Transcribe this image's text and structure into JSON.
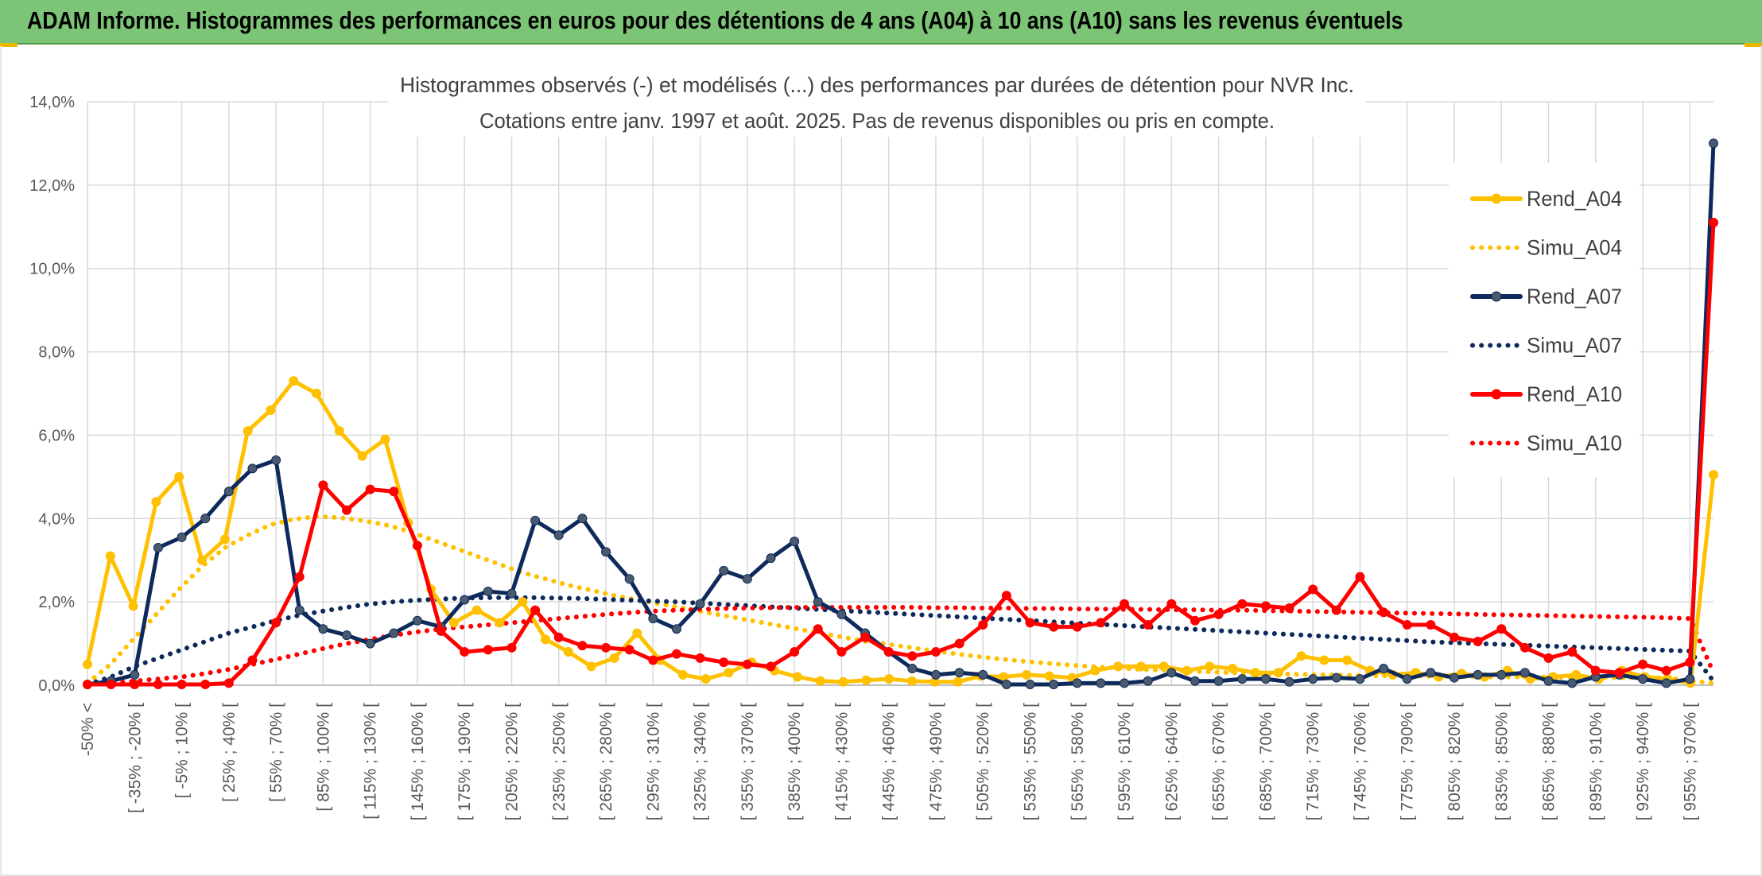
{
  "header": {
    "title": "ADAM Informe. Histogrammes des performances en euros pour des détentions de 4 ans (A04) à 10 ans (A10) sans les revenus éventuels"
  },
  "colors": {
    "header_bg": "#7cc576",
    "A04": "#ffc000",
    "A07": "#0e2a5c",
    "A07_marker": "#4a5a6e",
    "A10": "#ff0000",
    "grid": "#d9d9d9",
    "axis_text": "#595959"
  },
  "chart_data": {
    "type": "line",
    "title_lines": [
      "Histogrammes observés (-) et modélisés (...) des performances par durées de détention pour NVR Inc.",
      "Cotations entre janv. 1997 et août. 2025. Pas de revenus disponibles ou pris en compte."
    ],
    "ylim": [
      0,
      14
    ],
    "y_ticks": [
      "0,0%",
      "2,0%",
      "4,0%",
      "6,0%",
      "8,0%",
      "10,0%",
      "12,0%",
      "14,0%"
    ],
    "grid": true,
    "legend_position": "right",
    "x_tick_labels": [
      "-50% <",
      "[ -35% ; -20% [",
      "[ -5% ; 10% [",
      "[ 25% ; 40% [",
      "[ 55% ; 70% [",
      "[ 85% ; 100% [",
      "[ 115% ; 130% [",
      "[ 145% ; 160% [",
      "[ 175% ; 190% [",
      "[ 205% ; 220% [",
      "[ 235% ; 250% [",
      "[ 265% ; 280% [",
      "[ 295% ; 310% [",
      "[ 325% ; 340% [",
      "[ 355% ; 370% [",
      "[ 385% ; 400% [",
      "[ 415% ; 430% [",
      "[ 445% ; 460% [",
      "[ 475% ; 490% [",
      "[ 505% ; 520% [",
      "[ 535% ; 550% [",
      "[ 565% ; 580% [",
      "[ 595% ; 610% [",
      "[ 625% ; 640% [",
      "[ 655% ; 670% [",
      "[ 685% ; 700% [",
      "[ 715% ; 730% [",
      "[ 745% ; 760% [",
      "[ 775% ; 790% [",
      "[ 805% ; 820% [",
      "[ 835% ; 850% [",
      "[ 865% ; 880% [",
      "[ 895% ; 910% [",
      "[ 925% ; 940% [",
      "[ 955% ; 970% ["
    ],
    "series": [
      {
        "name": "Rend_A04",
        "style": "solid",
        "color": "#ffc000",
        "marker": true,
        "values": [
          0.5,
          3.1,
          1.9,
          4.4,
          5.0,
          3.0,
          3.5,
          6.1,
          6.6,
          7.3,
          7.0,
          6.1,
          5.5,
          5.9,
          3.9,
          2.3,
          1.5,
          1.8,
          1.5,
          2.0,
          1.1,
          0.8,
          0.45,
          0.65,
          1.25,
          0.6,
          0.25,
          0.15,
          0.3,
          0.55,
          0.35,
          0.2,
          0.1,
          0.08,
          0.12,
          0.15,
          0.1,
          0.08,
          0.08,
          0.22,
          0.2,
          0.25,
          0.22,
          0.18,
          0.35,
          0.45,
          0.45,
          0.45,
          0.35,
          0.45,
          0.4,
          0.3,
          0.3,
          0.7,
          0.6,
          0.6,
          0.35,
          0.25,
          0.3,
          0.2,
          0.28,
          0.2,
          0.35,
          0.15,
          0.2,
          0.25,
          0.15,
          0.35,
          0.2,
          0.15,
          0.05,
          5.05
        ]
      },
      {
        "name": "Simu_A04",
        "style": "dotted",
        "color": "#ffc000",
        "marker": false,
        "values": [
          0.05,
          0.5,
          1.1,
          1.7,
          2.3,
          2.85,
          3.3,
          3.6,
          3.85,
          3.98,
          4.05,
          4.02,
          3.95,
          3.85,
          3.7,
          3.5,
          3.3,
          3.1,
          2.9,
          2.7,
          2.55,
          2.4,
          2.28,
          2.15,
          2.05,
          1.95,
          1.85,
          1.75,
          1.65,
          1.55,
          1.45,
          1.35,
          1.25,
          1.15,
          1.05,
          0.98,
          0.9,
          0.82,
          0.75,
          0.68,
          0.62,
          0.57,
          0.52,
          0.48,
          0.44,
          0.41,
          0.38,
          0.36,
          0.34,
          0.32,
          0.3,
          0.28,
          0.27,
          0.26,
          0.25,
          0.24,
          0.23,
          0.22,
          0.22,
          0.21,
          0.21,
          0.2,
          0.2,
          0.2,
          0.19,
          0.19,
          0.19,
          0.18,
          0.18,
          0.18,
          0.1,
          0.05
        ]
      },
      {
        "name": "Rend_A07",
        "style": "solid",
        "color": "#0e2a5c",
        "marker": true,
        "values": [
          0.02,
          0.1,
          0.25,
          3.3,
          3.55,
          4.0,
          4.65,
          5.2,
          5.4,
          1.8,
          1.35,
          1.2,
          1.0,
          1.25,
          1.55,
          1.4,
          2.05,
          2.25,
          2.2,
          3.95,
          3.6,
          4.0,
          3.2,
          2.55,
          1.6,
          1.35,
          1.95,
          2.75,
          2.55,
          3.05,
          3.45,
          2.0,
          1.7,
          1.25,
          0.8,
          0.4,
          0.25,
          0.3,
          0.25,
          0.02,
          0.02,
          0.02,
          0.05,
          0.05,
          0.05,
          0.1,
          0.3,
          0.1,
          0.1,
          0.15,
          0.15,
          0.08,
          0.15,
          0.18,
          0.15,
          0.4,
          0.15,
          0.3,
          0.18,
          0.25,
          0.25,
          0.3,
          0.1,
          0.05,
          0.2,
          0.25,
          0.15,
          0.05,
          0.15,
          13.0
        ]
      },
      {
        "name": "Simu_A07",
        "style": "dotted",
        "color": "#0e2a5c",
        "marker": false,
        "values": [
          0.02,
          0.2,
          0.45,
          0.65,
          0.85,
          1.05,
          1.25,
          1.4,
          1.55,
          1.68,
          1.78,
          1.87,
          1.95,
          2.0,
          2.04,
          2.07,
          2.09,
          2.1,
          2.1,
          2.1,
          2.09,
          2.08,
          2.06,
          2.04,
          2.02,
          2.0,
          1.97,
          1.94,
          1.91,
          1.88,
          1.85,
          1.82,
          1.79,
          1.76,
          1.73,
          1.7,
          1.67,
          1.64,
          1.61,
          1.58,
          1.55,
          1.52,
          1.49,
          1.46,
          1.43,
          1.4,
          1.37,
          1.34,
          1.31,
          1.28,
          1.25,
          1.22,
          1.19,
          1.16,
          1.13,
          1.1,
          1.07,
          1.04,
          1.02,
          1.0,
          0.98,
          0.96,
          0.94,
          0.92,
          0.9,
          0.88,
          0.86,
          0.84,
          0.82,
          0.1
        ]
      },
      {
        "name": "Rend_A10",
        "style": "solid",
        "color": "#ff0000",
        "marker": true,
        "values": [
          0.02,
          0.02,
          0.02,
          0.02,
          0.02,
          0.02,
          0.05,
          0.6,
          1.5,
          2.6,
          4.8,
          4.2,
          4.7,
          4.65,
          3.35,
          1.3,
          0.8,
          0.85,
          0.9,
          1.8,
          1.15,
          0.95,
          0.9,
          0.85,
          0.6,
          0.75,
          0.65,
          0.55,
          0.5,
          0.45,
          0.8,
          1.35,
          0.8,
          1.15,
          0.8,
          0.7,
          0.8,
          1.0,
          1.45,
          2.15,
          1.5,
          1.4,
          1.4,
          1.5,
          1.95,
          1.45,
          1.95,
          1.55,
          1.7,
          1.95,
          1.9,
          1.85,
          2.3,
          1.8,
          2.6,
          1.75,
          1.45,
          1.45,
          1.15,
          1.05,
          1.35,
          0.9,
          0.65,
          0.8,
          0.35,
          0.3,
          0.5,
          0.35,
          0.55,
          11.1
        ]
      },
      {
        "name": "Simu_A10",
        "style": "dotted",
        "color": "#ff0000",
        "marker": false,
        "values": [
          0.02,
          0.05,
          0.1,
          0.15,
          0.2,
          0.28,
          0.38,
          0.5,
          0.62,
          0.75,
          0.88,
          1.0,
          1.1,
          1.2,
          1.28,
          1.35,
          1.4,
          1.45,
          1.5,
          1.55,
          1.6,
          1.65,
          1.7,
          1.74,
          1.78,
          1.8,
          1.82,
          1.84,
          1.85,
          1.86,
          1.87,
          1.87,
          1.87,
          1.87,
          1.87,
          1.87,
          1.86,
          1.86,
          1.85,
          1.85,
          1.84,
          1.84,
          1.83,
          1.83,
          1.82,
          1.82,
          1.81,
          1.81,
          1.8,
          1.8,
          1.79,
          1.78,
          1.77,
          1.76,
          1.75,
          1.74,
          1.73,
          1.72,
          1.71,
          1.7,
          1.69,
          1.68,
          1.67,
          1.66,
          1.65,
          1.64,
          1.63,
          1.62,
          1.6,
          0.3
        ]
      }
    ]
  }
}
